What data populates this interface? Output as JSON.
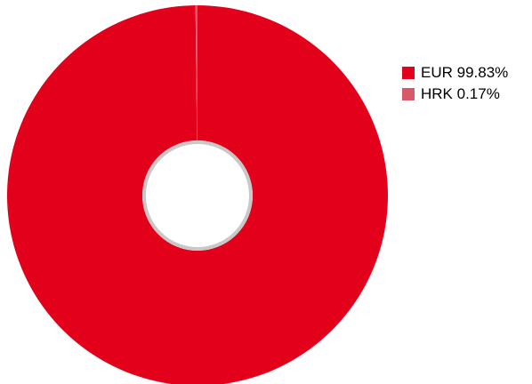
{
  "chart_data": {
    "type": "pie",
    "donut": true,
    "categories": [
      "EUR",
      "HRK"
    ],
    "values": [
      99.83,
      0.17
    ],
    "labels": [
      "EUR 99.83%",
      "HRK 0.17%"
    ],
    "colors": [
      "#e2001a",
      "#d9596b"
    ],
    "legend_position": "right"
  }
}
